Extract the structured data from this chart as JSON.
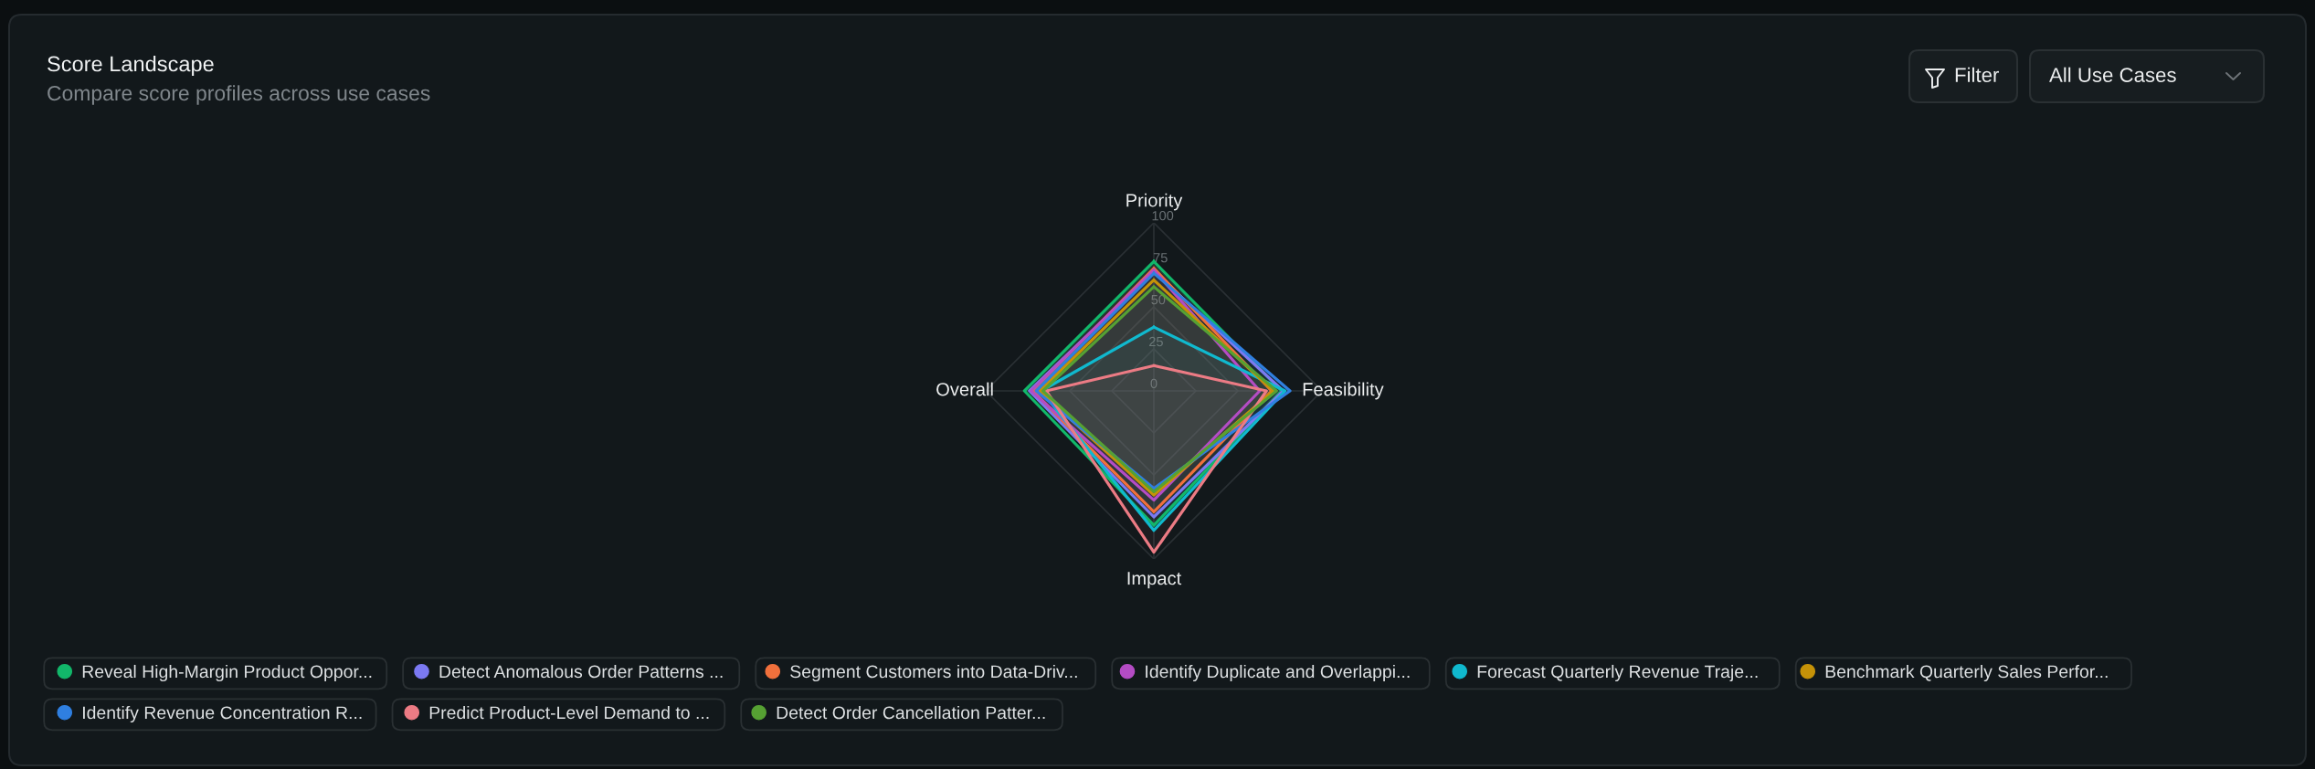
{
  "chart_data": {
    "type": "radar",
    "title": "Score Landscape",
    "subtitle": "Compare score profiles across use cases",
    "annotations": [
      "Filter",
      "All Use Cases"
    ],
    "categories": [
      "Priority",
      "Feasibility",
      "Impact",
      "Overall"
    ],
    "ylim": [
      0,
      100
    ],
    "yticks": [
      0,
      25,
      50,
      75,
      100
    ],
    "grid": true,
    "legend": "bottom",
    "series": [
      {
        "name": "Reveal High-Margin Product Oppor...",
        "color": "#12b76a",
        "values": [
          77,
          76,
          80,
          77
        ]
      },
      {
        "name": "Detect Anomalous Order Patterns ...",
        "color": "#7b79f2",
        "values": [
          71,
          77,
          75,
          74
        ]
      },
      {
        "name": "Segment Customers into Data-Driv...",
        "color": "#f0703c",
        "values": [
          73,
          70,
          72,
          72
        ]
      },
      {
        "name": "Identify Duplicate and Overlappi...",
        "color": "#b44cc4",
        "values": [
          72,
          63,
          65,
          73
        ]
      },
      {
        "name": "Forecast Quarterly Revenue Traje...",
        "color": "#10b9ce",
        "values": [
          38,
          78,
          83,
          67
        ]
      },
      {
        "name": "Benchmark Quarterly Sales Perfor...",
        "color": "#c59208",
        "values": [
          66,
          71,
          62,
          68
        ]
      },
      {
        "name": "Identify Revenue Concentration R...",
        "color": "#2f7fe0",
        "values": [
          70,
          81,
          58,
          70
        ]
      },
      {
        "name": "Predict Product-Level Demand to ...",
        "color": "#ec7b84",
        "values": [
          15,
          67,
          96,
          64
        ]
      },
      {
        "name": "Detect Order Cancellation Patter...",
        "color": "#56a133",
        "values": [
          62,
          73,
          60,
          66
        ]
      }
    ]
  }
}
